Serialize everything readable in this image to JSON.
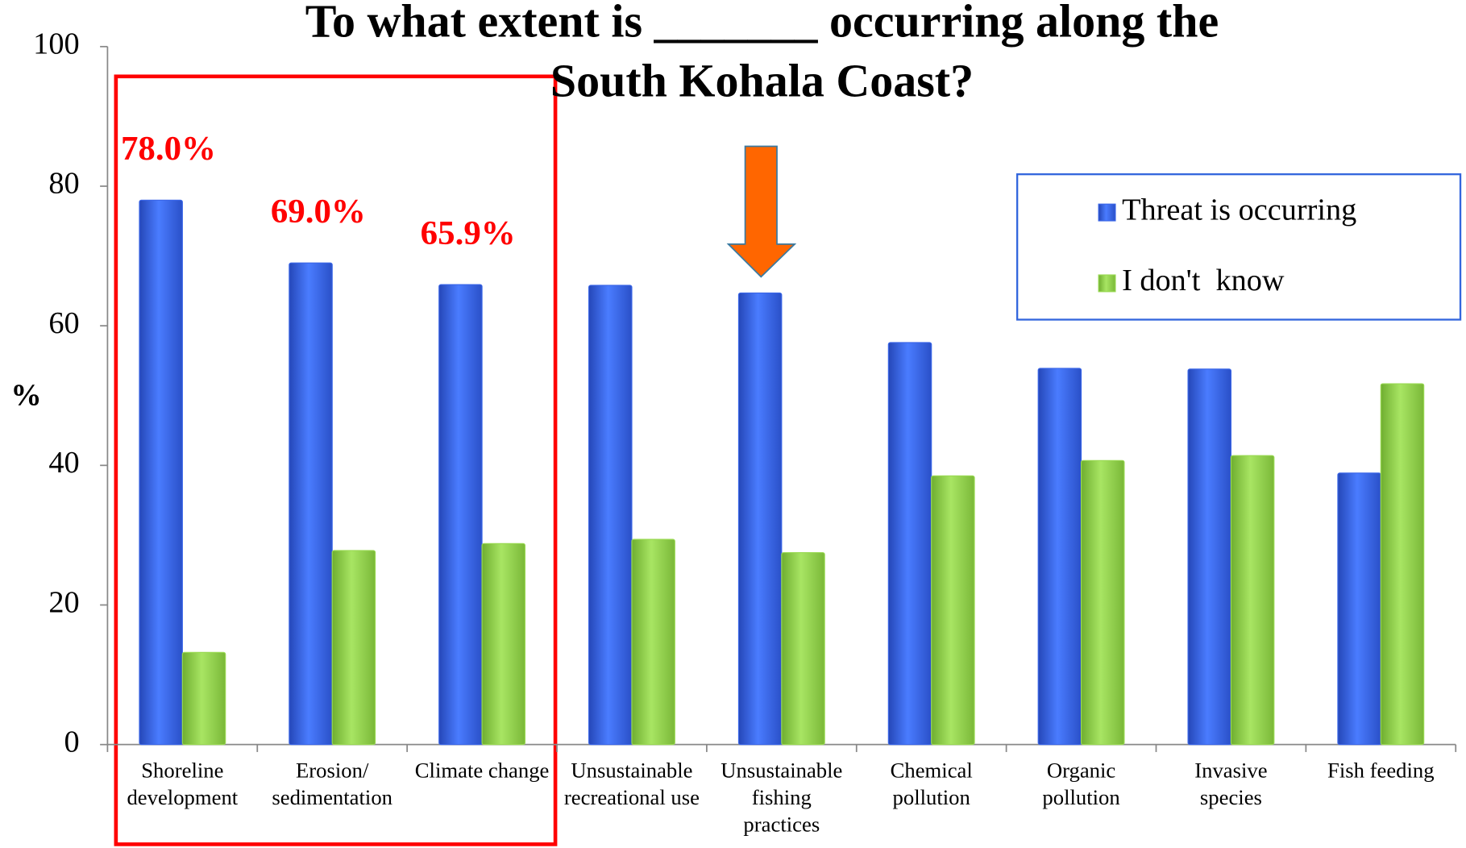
{
  "chart_data": {
    "type": "bar",
    "title": "To what extent is _______ occurring along the\nSouth Kohala Coast?",
    "ylabel": "%",
    "categories": [
      "Shoreline\ndevelopment",
      "Erosion/\nsedimentation",
      "Climate change",
      "Unsustainable\nrecreational use",
      "Unsustainable\nfishing\npractices",
      "Chemical\npollution",
      "Organic\npollution",
      "Invasive\nspecies",
      "Fish feeding"
    ],
    "series": [
      {
        "name": "Threat is occurring",
        "color": "#3a66e8",
        "values": [
          78.0,
          69.0,
          65.9,
          65.8,
          64.7,
          57.6,
          53.9,
          53.8,
          38.9
        ],
        "value_labels": [
          "78.0%",
          "69.0%",
          "65.9%",
          null,
          null,
          null,
          null,
          null,
          null
        ]
      },
      {
        "name": "I don't  know",
        "color": "#99d952",
        "values": [
          13.2,
          27.8,
          28.8,
          29.4,
          27.5,
          38.5,
          40.7,
          41.4,
          51.7
        ]
      }
    ],
    "ylim": [
      0,
      100
    ],
    "yticks": [
      0,
      20,
      40,
      60,
      80,
      100
    ],
    "grid": false,
    "legend": "upper right"
  }
}
